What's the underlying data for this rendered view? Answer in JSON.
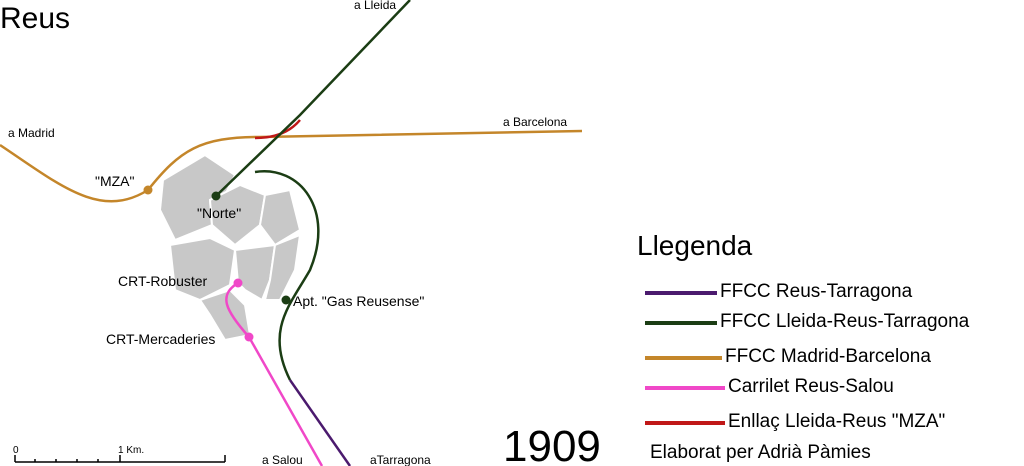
{
  "title": "Reus",
  "labels": [
    "a Lleida",
    "a Barcelona",
    "a Madrid",
    "\"MZA\"",
    "\"Norte\"",
    "CRT-Robuster",
    "Apt. \"Gas Reusense\"",
    "CRT-Mercaderies",
    "a Salou",
    "aTarragona"
  ],
  "legend": {
    "title": "Llegenda",
    "items": [
      {
        "label": "FFCC Reus-Tarragona",
        "color": "#4b1a6e"
      },
      {
        "label": "FFCC Lleida-Reus-Tarragona",
        "color": "#1b3d14"
      },
      {
        "label": "FFCC Madrid-Barcelona",
        "color": "#c4862a"
      },
      {
        "label": "Carrilet Reus-Salou",
        "color": "#f048c8"
      },
      {
        "label": "Enllaç Lleida-Reus \"MZA\"",
        "color": "#c01818"
      }
    ]
  },
  "year": "1909",
  "credit": "Elaborat per Adrià Pàmies",
  "scale": {
    "start": "0",
    "end": "1 Km."
  }
}
